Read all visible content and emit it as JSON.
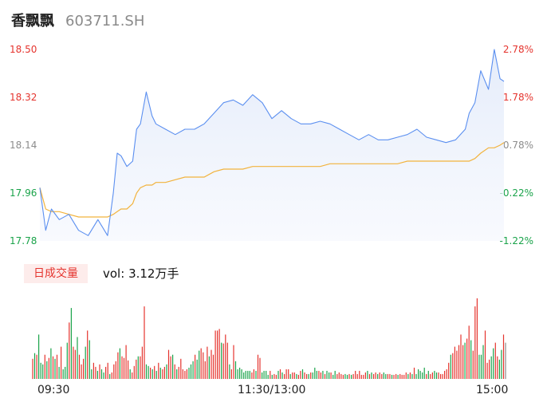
{
  "header": {
    "stock_name": "香飘飘",
    "stock_code": "603711.SH"
  },
  "volume_panel": {
    "period_button": "日成交量",
    "vol_label": "vol:",
    "vol_value": "3.12万手"
  },
  "colors": {
    "price_line": "#5b8ff0",
    "avg_line": "#f2b33d",
    "up": "#e5342e",
    "down": "#1aa34a",
    "flat": "#8c8c8c"
  },
  "chart_data": [
    {
      "type": "line",
      "title": "",
      "y_left_ticks": [
        "18.50",
        "18.32",
        "18.14",
        "17.96",
        "17.78"
      ],
      "y_right_ticks": [
        "2.78%",
        "1.78%",
        "0.78%",
        "-0.22%",
        "-1.22%"
      ],
      "x_tick_labels": [
        "09:30",
        "11:30/13:00",
        "15:00"
      ],
      "ylim": [
        17.78,
        18.5
      ],
      "reference_price": 18.0,
      "x": [
        0,
        3,
        6,
        10,
        15,
        20,
        25,
        30,
        35,
        38,
        40,
        42,
        45,
        48,
        50,
        52,
        55,
        58,
        60,
        65,
        70,
        75,
        80,
        85,
        90,
        95,
        100,
        105,
        110,
        115,
        120,
        125,
        130,
        135,
        140,
        145,
        150,
        155,
        160,
        165,
        170,
        175,
        180,
        185,
        190,
        195,
        200,
        205,
        210,
        215,
        220,
        222,
        225,
        228,
        232,
        235,
        238,
        240
      ],
      "series": [
        {
          "name": "",
          "values": [
            17.98,
            17.82,
            17.9,
            17.86,
            17.88,
            17.82,
            17.8,
            17.86,
            17.8,
            17.96,
            18.11,
            18.1,
            18.06,
            18.08,
            18.2,
            18.22,
            18.34,
            18.25,
            18.22,
            18.2,
            18.18,
            18.2,
            18.2,
            18.22,
            18.26,
            18.3,
            18.31,
            18.29,
            18.33,
            18.3,
            18.24,
            18.27,
            18.24,
            18.22,
            18.22,
            18.23,
            18.22,
            18.2,
            18.18,
            18.16,
            18.18,
            18.16,
            18.16,
            18.17,
            18.18,
            18.2,
            18.17,
            18.16,
            18.15,
            18.16,
            18.2,
            18.26,
            18.3,
            18.42,
            18.35,
            18.5,
            18.39,
            18.38
          ]
        },
        {
          "name": "",
          "values": [
            17.98,
            17.9,
            17.89,
            17.89,
            17.88,
            17.87,
            17.87,
            17.87,
            17.87,
            17.88,
            17.89,
            17.9,
            17.9,
            17.92,
            17.96,
            17.98,
            17.99,
            17.99,
            18.0,
            18.0,
            18.01,
            18.02,
            18.02,
            18.02,
            18.04,
            18.05,
            18.05,
            18.05,
            18.06,
            18.06,
            18.06,
            18.06,
            18.06,
            18.06,
            18.06,
            18.06,
            18.07,
            18.07,
            18.07,
            18.07,
            18.07,
            18.07,
            18.07,
            18.07,
            18.08,
            18.08,
            18.08,
            18.08,
            18.08,
            18.08,
            18.08,
            18.08,
            18.09,
            18.11,
            18.13,
            18.13,
            18.14,
            18.15
          ]
        }
      ]
    },
    {
      "type": "bar",
      "title": "",
      "x_tick_labels": [
        "09:30",
        "11:30/13:00",
        "15:00"
      ],
      "values": [
        25,
        32,
        30,
        55,
        20,
        18,
        30,
        22,
        26,
        38,
        28,
        25,
        30,
        15,
        40,
        12,
        15,
        45,
        70,
        88,
        40,
        36,
        52,
        30,
        18,
        25,
        40,
        60,
        48,
        12,
        20,
        15,
        10,
        18,
        12,
        8,
        15,
        20,
        6,
        8,
        18,
        22,
        33,
        38,
        28,
        26,
        42,
        23,
        12,
        8,
        16,
        24,
        28,
        28,
        40,
        90,
        18,
        16,
        14,
        12,
        16,
        10,
        20,
        14,
        12,
        15,
        18,
        36,
        28,
        30,
        18,
        12,
        15,
        25,
        12,
        10,
        12,
        14,
        18,
        22,
        30,
        24,
        35,
        38,
        33,
        22,
        40,
        28,
        36,
        30,
        60,
        60,
        62,
        45,
        44,
        55,
        45,
        18,
        12,
        42,
        22,
        12,
        14,
        12,
        8,
        10,
        10,
        10,
        8,
        12,
        10,
        30,
        26,
        8,
        10,
        10,
        5,
        10,
        5,
        6,
        5,
        10,
        12,
        8,
        6,
        12,
        12,
        6,
        8,
        8,
        6,
        5,
        10,
        12,
        8,
        6,
        6,
        8,
        8,
        14,
        10,
        10,
        8,
        10,
        6,
        10,
        8,
        8,
        5,
        10,
        6,
        8,
        6,
        5,
        6,
        5,
        6,
        5,
        6,
        10,
        6,
        10,
        5,
        5,
        8,
        10,
        6,
        8,
        6,
        8,
        6,
        8,
        6,
        8,
        6,
        6,
        6,
        5,
        5,
        6,
        5,
        6,
        5,
        5,
        8,
        6,
        8,
        6,
        14,
        6,
        12,
        10,
        8,
        14,
        6,
        10,
        6,
        8,
        10,
        8,
        8,
        6,
        6,
        10,
        12,
        20,
        30,
        32,
        40,
        35,
        42,
        55,
        42,
        45,
        50,
        66,
        48,
        35,
        90,
        100,
        30,
        30,
        42,
        60,
        20,
        24,
        28,
        38,
        45,
        28,
        24,
        36,
        55,
        45
      ],
      "colors": [
        "up",
        "down",
        "up",
        "down",
        "down",
        "down",
        "up",
        "down",
        "up",
        "down",
        "up",
        "down",
        "up",
        "down",
        "up",
        "down",
        "down",
        "down",
        "up",
        "down",
        "up",
        "up",
        "down",
        "up",
        "up",
        "up",
        "down",
        "up",
        "down",
        "down",
        "up",
        "up",
        "down",
        "up",
        "down",
        "down",
        "up",
        "up",
        "down",
        "up",
        "up",
        "up",
        "up",
        "down",
        "up",
        "up",
        "up",
        "up",
        "down",
        "up",
        "up",
        "up",
        "down",
        "up",
        "up",
        "up",
        "down",
        "down",
        "up",
        "down",
        "up",
        "down",
        "up",
        "down",
        "up",
        "up",
        "down",
        "up",
        "up",
        "down",
        "up",
        "down",
        "up",
        "up",
        "up",
        "up",
        "up",
        "down",
        "down",
        "down",
        "up",
        "down",
        "down",
        "up",
        "up",
        "up",
        "up",
        "down",
        "up",
        "up",
        "up",
        "up",
        "up",
        "down",
        "up",
        "up",
        "up",
        "down",
        "up",
        "up",
        "down",
        "down",
        "down",
        "down",
        "down",
        "down",
        "down",
        "down",
        "up",
        "up",
        "down",
        "up",
        "up",
        "down",
        "down",
        "down",
        "down",
        "up",
        "down",
        "up",
        "up",
        "down",
        "up",
        "down",
        "up",
        "up",
        "up",
        "down",
        "up",
        "up",
        "down",
        "up",
        "up",
        "down",
        "up",
        "up",
        "down",
        "up",
        "down",
        "down",
        "down",
        "up",
        "up",
        "down",
        "up",
        "down",
        "down",
        "up",
        "down",
        "down",
        "up",
        "up",
        "up",
        "up",
        "down",
        "down",
        "up",
        "down",
        "up",
        "up",
        "up",
        "up",
        "up",
        "up",
        "up",
        "down",
        "up",
        "down",
        "up",
        "up",
        "down",
        "up",
        "up",
        "down",
        "down",
        "up",
        "up",
        "down",
        "up",
        "up",
        "down",
        "up",
        "up",
        "up",
        "up",
        "down",
        "up",
        "down",
        "up",
        "down",
        "down",
        "down",
        "down",
        "down",
        "up",
        "down",
        "up",
        "up",
        "down",
        "down",
        "up",
        "up",
        "up",
        "up",
        "up",
        "up",
        "down",
        "up",
        "up",
        "up",
        "up",
        "up",
        "up",
        "down",
        "up",
        "up",
        "down",
        "up",
        "up",
        "up",
        "down",
        "down",
        "down",
        "up",
        "up",
        "up",
        "down",
        "down",
        "up",
        "up",
        "down",
        "down",
        "up",
        "flat"
      ]
    }
  ]
}
